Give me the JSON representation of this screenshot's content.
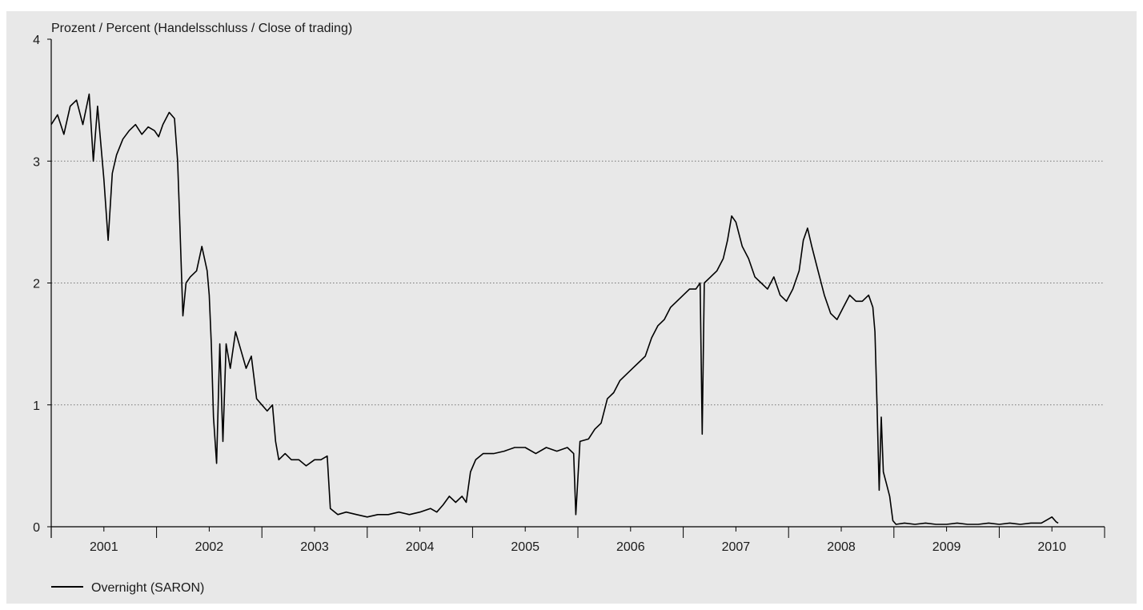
{
  "chart_data": {
    "type": "line",
    "title": "",
    "ylabel": "Prozent / Percent (Handelsschluss / Close of trading)",
    "xlabel": "",
    "xlim": [
      2000.5,
      2010.5
    ],
    "ylim": [
      0,
      4
    ],
    "yticks": [
      0,
      1,
      2,
      3,
      4
    ],
    "xtick_labels": [
      "2001",
      "2002",
      "2003",
      "2004",
      "2005",
      "2006",
      "2007",
      "2008",
      "2009",
      "2010"
    ],
    "grid": "horizontal-dotted",
    "legend_position": "bottom-left",
    "colors": {
      "line": "#000000",
      "background": "#e8e8e8",
      "grid": "#777777"
    },
    "series": [
      {
        "name": "Overnight (SARON)",
        "points": [
          [
            2000.5,
            3.3
          ],
          [
            2000.56,
            3.38
          ],
          [
            2000.62,
            3.22
          ],
          [
            2000.68,
            3.45
          ],
          [
            2000.74,
            3.5
          ],
          [
            2000.8,
            3.3
          ],
          [
            2000.86,
            3.55
          ],
          [
            2000.9,
            3.0
          ],
          [
            2000.94,
            3.45
          ],
          [
            2001.0,
            2.85
          ],
          [
            2001.04,
            2.35
          ],
          [
            2001.08,
            2.9
          ],
          [
            2001.12,
            3.05
          ],
          [
            2001.18,
            3.18
          ],
          [
            2001.24,
            3.25
          ],
          [
            2001.3,
            3.3
          ],
          [
            2001.36,
            3.22
          ],
          [
            2001.42,
            3.28
          ],
          [
            2001.48,
            3.25
          ],
          [
            2001.52,
            3.2
          ],
          [
            2001.56,
            3.3
          ],
          [
            2001.62,
            3.4
          ],
          [
            2001.67,
            3.35
          ],
          [
            2001.7,
            3.0
          ],
          [
            2001.72,
            2.5
          ],
          [
            2001.75,
            1.73
          ],
          [
            2001.78,
            2.0
          ],
          [
            2001.82,
            2.05
          ],
          [
            2001.88,
            2.1
          ],
          [
            2001.93,
            2.3
          ],
          [
            2001.98,
            2.1
          ],
          [
            2002.0,
            1.9
          ],
          [
            2002.02,
            1.5
          ],
          [
            2002.04,
            0.9
          ],
          [
            2002.07,
            0.52
          ],
          [
            2002.1,
            1.5
          ],
          [
            2002.13,
            0.7
          ],
          [
            2002.16,
            1.5
          ],
          [
            2002.2,
            1.3
          ],
          [
            2002.25,
            1.6
          ],
          [
            2002.3,
            1.45
          ],
          [
            2002.35,
            1.3
          ],
          [
            2002.4,
            1.4
          ],
          [
            2002.45,
            1.05
          ],
          [
            2002.5,
            1.0
          ],
          [
            2002.55,
            0.95
          ],
          [
            2002.6,
            1.0
          ],
          [
            2002.63,
            0.7
          ],
          [
            2002.66,
            0.55
          ],
          [
            2002.72,
            0.6
          ],
          [
            2002.78,
            0.55
          ],
          [
            2002.85,
            0.55
          ],
          [
            2002.92,
            0.5
          ],
          [
            2003.0,
            0.55
          ],
          [
            2003.06,
            0.55
          ],
          [
            2003.12,
            0.58
          ],
          [
            2003.15,
            0.15
          ],
          [
            2003.22,
            0.1
          ],
          [
            2003.3,
            0.12
          ],
          [
            2003.4,
            0.1
          ],
          [
            2003.5,
            0.08
          ],
          [
            2003.6,
            0.1
          ],
          [
            2003.7,
            0.1
          ],
          [
            2003.8,
            0.12
          ],
          [
            2003.9,
            0.1
          ],
          [
            2004.0,
            0.12
          ],
          [
            2004.1,
            0.15
          ],
          [
            2004.16,
            0.12
          ],
          [
            2004.22,
            0.18
          ],
          [
            2004.28,
            0.25
          ],
          [
            2004.34,
            0.2
          ],
          [
            2004.4,
            0.25
          ],
          [
            2004.44,
            0.2
          ],
          [
            2004.48,
            0.45
          ],
          [
            2004.53,
            0.55
          ],
          [
            2004.6,
            0.6
          ],
          [
            2004.7,
            0.6
          ],
          [
            2004.8,
            0.62
          ],
          [
            2004.9,
            0.65
          ],
          [
            2005.0,
            0.65
          ],
          [
            2005.1,
            0.6
          ],
          [
            2005.2,
            0.65
          ],
          [
            2005.3,
            0.62
          ],
          [
            2005.4,
            0.65
          ],
          [
            2005.46,
            0.6
          ],
          [
            2005.48,
            0.1
          ],
          [
            2005.52,
            0.7
          ],
          [
            2005.6,
            0.72
          ],
          [
            2005.66,
            0.8
          ],
          [
            2005.72,
            0.85
          ],
          [
            2005.78,
            1.05
          ],
          [
            2005.84,
            1.1
          ],
          [
            2005.9,
            1.2
          ],
          [
            2005.96,
            1.25
          ],
          [
            2006.02,
            1.3
          ],
          [
            2006.08,
            1.35
          ],
          [
            2006.14,
            1.4
          ],
          [
            2006.2,
            1.55
          ],
          [
            2006.26,
            1.65
          ],
          [
            2006.32,
            1.7
          ],
          [
            2006.38,
            1.8
          ],
          [
            2006.44,
            1.85
          ],
          [
            2006.5,
            1.9
          ],
          [
            2006.56,
            1.95
          ],
          [
            2006.62,
            1.95
          ],
          [
            2006.66,
            2.0
          ],
          [
            2006.68,
            0.76
          ],
          [
            2006.7,
            2.0
          ],
          [
            2006.76,
            2.05
          ],
          [
            2006.82,
            2.1
          ],
          [
            2006.88,
            2.2
          ],
          [
            2006.92,
            2.35
          ],
          [
            2006.96,
            2.55
          ],
          [
            2007.0,
            2.5
          ],
          [
            2007.06,
            2.3
          ],
          [
            2007.12,
            2.2
          ],
          [
            2007.18,
            2.05
          ],
          [
            2007.24,
            2.0
          ],
          [
            2007.3,
            1.95
          ],
          [
            2007.36,
            2.05
          ],
          [
            2007.42,
            1.9
          ],
          [
            2007.48,
            1.85
          ],
          [
            2007.54,
            1.95
          ],
          [
            2007.6,
            2.1
          ],
          [
            2007.64,
            2.35
          ],
          [
            2007.68,
            2.45
          ],
          [
            2007.72,
            2.3
          ],
          [
            2007.78,
            2.1
          ],
          [
            2007.84,
            1.9
          ],
          [
            2007.9,
            1.75
          ],
          [
            2007.96,
            1.7
          ],
          [
            2008.02,
            1.8
          ],
          [
            2008.08,
            1.9
          ],
          [
            2008.14,
            1.85
          ],
          [
            2008.2,
            1.85
          ],
          [
            2008.26,
            1.9
          ],
          [
            2008.3,
            1.8
          ],
          [
            2008.32,
            1.6
          ],
          [
            2008.34,
            1.0
          ],
          [
            2008.36,
            0.3
          ],
          [
            2008.38,
            0.9
          ],
          [
            2008.4,
            0.45
          ],
          [
            2008.43,
            0.35
          ],
          [
            2008.46,
            0.25
          ],
          [
            2008.49,
            0.05
          ],
          [
            2008.52,
            0.02
          ],
          [
            2008.6,
            0.03
          ],
          [
            2008.7,
            0.02
          ],
          [
            2008.8,
            0.03
          ],
          [
            2008.9,
            0.02
          ],
          [
            2009.0,
            0.02
          ],
          [
            2009.1,
            0.03
          ],
          [
            2009.2,
            0.02
          ],
          [
            2009.3,
            0.02
          ],
          [
            2009.4,
            0.03
          ],
          [
            2009.5,
            0.02
          ],
          [
            2009.6,
            0.03
          ],
          [
            2009.7,
            0.02
          ],
          [
            2009.8,
            0.03
          ],
          [
            2009.9,
            0.03
          ],
          [
            2009.96,
            0.06
          ],
          [
            2010.0,
            0.08
          ],
          [
            2010.04,
            0.04
          ],
          [
            2010.06,
            0.03
          ]
        ]
      }
    ]
  }
}
